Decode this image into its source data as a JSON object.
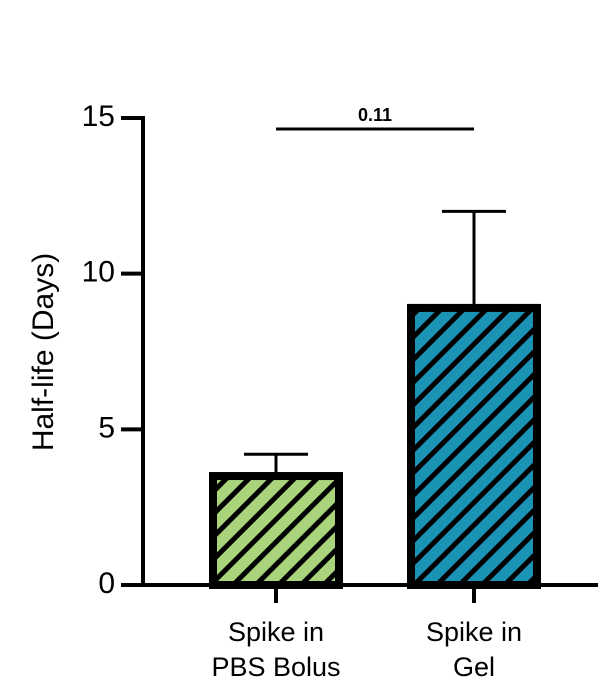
{
  "chart_data": {
    "type": "bar",
    "ylabel": "Half-life (Days)",
    "categories": [
      [
        "Spike in",
        "PBS Bolus"
      ],
      [
        "Spike in",
        "Gel"
      ]
    ],
    "values": [
      3.5,
      8.9
    ],
    "errors": [
      0.7,
      3.1
    ],
    "colors": [
      "#a9d47c",
      "#1b93b5"
    ],
    "hatch": true,
    "ylim": [
      0,
      15
    ],
    "yticks": [
      0,
      5,
      10,
      15
    ],
    "significance": {
      "label": "0.11"
    }
  }
}
